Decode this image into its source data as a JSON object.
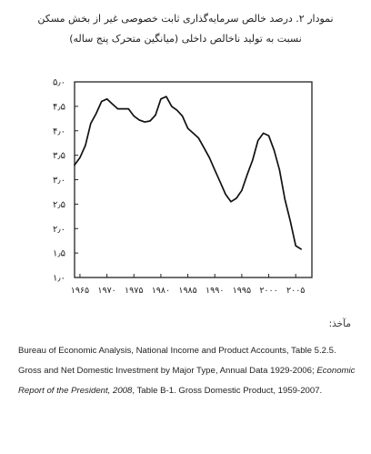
{
  "title_line1": "نمودار ۲. درصد خالص سرمایه‌گذاری ثابت خصوصی غیر از بخش مسکن",
  "title_line2": "نسبت به تولید ناخالص داخلی (میانگین متحرک پنج ساله)",
  "source_label": "مآخذ:",
  "source_text_1": "Bureau of Economic Analysis, National Income and Product Accounts, Table 5.2.5. Gross and Net Domestic Investment by Major Type, Annual Data 1929-2006; ",
  "source_italic": "Economic Report of the President, 2008",
  "source_text_2": ", Table B-1. Gross Domestic Product, 1959-2007.",
  "chart_data": {
    "type": "line",
    "title": "",
    "xlabel": "",
    "ylabel": "",
    "xlim": [
      1964,
      2008
    ],
    "ylim": [
      1.0,
      5.0
    ],
    "yticks": [
      1.0,
      1.5,
      2.0,
      2.5,
      3.0,
      3.5,
      4.0,
      4.5,
      5.0
    ],
    "ytick_labels": [
      "۱٫۰",
      "۱٫۵",
      "۲٫۰",
      "۲٫۵",
      "۳٫۰",
      "۳٫۵",
      "۴٫۰",
      "۴٫۵",
      "۵٫۰"
    ],
    "xticks": [
      1965,
      1970,
      1975,
      1980,
      1985,
      1990,
      1995,
      2000,
      2005
    ],
    "xtick_labels": [
      "۱۹۶۵",
      "۱۹۷۰",
      "۱۹۷۵",
      "۱۹۸۰",
      "۱۹۸۵",
      "۱۹۹۰",
      "۱۹۹۵",
      "۲۰۰۰",
      "۲۰۰۵"
    ],
    "grid": false,
    "series": [
      {
        "x": [
          1964,
          1965,
          1966,
          1967,
          1968,
          1969,
          1970,
          1971,
          1972,
          1973,
          1974,
          1975,
          1976,
          1977,
          1978,
          1979,
          1980,
          1981,
          1982,
          1983,
          1984,
          1985,
          1986,
          1987,
          1988,
          1989,
          1990,
          1991,
          1992,
          1993,
          1994,
          1995,
          1996,
          1997,
          1998,
          1999,
          2000,
          2001,
          2002,
          2003,
          2004,
          2005,
          2006
        ],
        "values": [
          3.3,
          3.45,
          3.7,
          4.15,
          4.35,
          4.6,
          4.65,
          4.55,
          4.45,
          4.45,
          4.45,
          4.3,
          4.22,
          4.18,
          4.2,
          4.32,
          4.65,
          4.7,
          4.5,
          4.42,
          4.3,
          4.05,
          3.95,
          3.85,
          3.65,
          3.45,
          3.2,
          2.95,
          2.7,
          2.55,
          2.62,
          2.78,
          3.1,
          3.4,
          3.8,
          3.95,
          3.9,
          3.6,
          3.2,
          2.6,
          2.15,
          1.65,
          1.58
        ]
      }
    ]
  }
}
